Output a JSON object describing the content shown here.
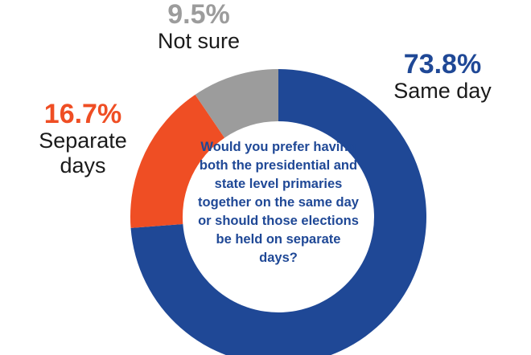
{
  "chart_data": {
    "type": "donut",
    "title": "Would you prefer having both the presidential and state level primaries together on the same day or should those elections be held on separate days?",
    "categories": [
      "Same day",
      "Separate days",
      "Not sure"
    ],
    "values": [
      73.8,
      16.7,
      9.5
    ],
    "value_labels": [
      "73.8%",
      "16.7%",
      "9.5%"
    ],
    "colors": [
      "#1f4896",
      "#ef4e24",
      "#9c9c9c"
    ]
  }
}
